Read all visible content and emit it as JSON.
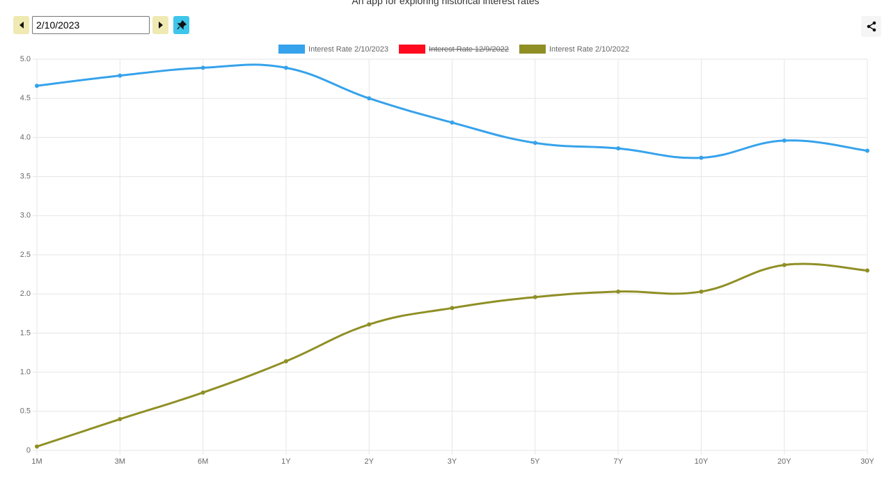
{
  "header": {
    "subtitle": "An app for exploring historical interest rates"
  },
  "controls": {
    "date": "2/10/2023"
  },
  "chart_data": {
    "type": "line",
    "categories": [
      "1M",
      "3M",
      "6M",
      "1Y",
      "2Y",
      "3Y",
      "5Y",
      "7Y",
      "10Y",
      "20Y",
      "30Y"
    ],
    "series": [
      {
        "name": "Interest Rate 2/10/2023",
        "color": "#36a2eb",
        "values": [
          4.66,
          4.79,
          4.89,
          4.89,
          4.5,
          4.19,
          3.93,
          3.86,
          3.74,
          3.96,
          3.83
        ]
      },
      {
        "name": "Interest Rate 12/9/2022",
        "color": "#ff0a1e",
        "hidden": true,
        "values": [
          null,
          null,
          null,
          null,
          null,
          null,
          null,
          null,
          null,
          null,
          null
        ]
      },
      {
        "name": "Interest Rate 2/10/2022",
        "color": "#8f8f26",
        "values": [
          0.05,
          0.4,
          0.74,
          1.14,
          1.61,
          1.82,
          1.96,
          2.03,
          2.03,
          2.37,
          2.3
        ]
      }
    ],
    "ylim": [
      0,
      5
    ],
    "yticks": [
      0,
      0.5,
      {
        "value": 1,
        "label": "1.0"
      },
      1.5,
      {
        "value": 2,
        "label": "2.0"
      },
      2.5,
      {
        "value": 3,
        "label": "3.0"
      },
      3.5,
      {
        "value": 4,
        "label": "4.0"
      },
      4.5,
      {
        "value": 5,
        "label": "5.0"
      }
    ],
    "grid": true,
    "legend": "top"
  }
}
